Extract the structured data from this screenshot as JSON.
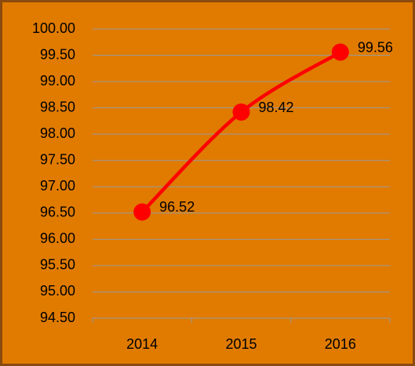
{
  "chart_data": {
    "type": "line",
    "categories": [
      "2014",
      "2015",
      "2016"
    ],
    "values": [
      96.52,
      98.42,
      99.56
    ],
    "color": "#ff0000",
    "smooth": true,
    "ylim": [
      94.5,
      100
    ],
    "yticks": [
      {
        "value": 94.5,
        "label": "94.50"
      },
      {
        "value": 95,
        "label": "95.00"
      },
      {
        "value": 95.5,
        "label": "95.50"
      },
      {
        "value": 96,
        "label": "96.00"
      },
      {
        "value": 96.5,
        "label": "96.50"
      },
      {
        "value": 97,
        "label": "97.00"
      },
      {
        "value": 97.5,
        "label": "97.50"
      },
      {
        "value": 98,
        "label": "98.00"
      },
      {
        "value": 98.5,
        "label": "98.50"
      },
      {
        "value": 99,
        "label": "99.00"
      },
      {
        "value": 99.5,
        "label": "99.50"
      },
      {
        "value": 100,
        "label": "100.00"
      }
    ],
    "grid": true
  }
}
